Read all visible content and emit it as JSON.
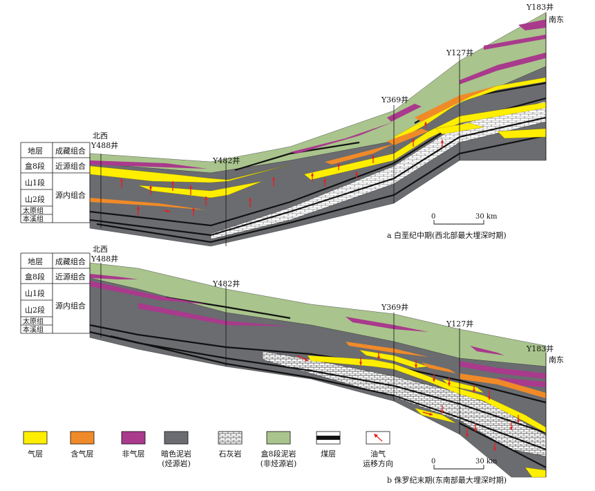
{
  "stratigraphy_table": {
    "header_left": "地层",
    "header_right": "成藏组合",
    "rows": [
      "盒8段",
      "山1段",
      "山2段",
      "太原组",
      "本溪组"
    ],
    "groups": [
      "近源组合",
      "源内组合"
    ]
  },
  "panel_a": {
    "wells": [
      "Y488井",
      "Y482井",
      "Y369井",
      "Y127井",
      "Y183井"
    ],
    "dir_left": "北西",
    "dir_right": "南东",
    "scale_zero": "0",
    "scale_end": "30 km",
    "caption": "a 白垩纪中期(西北部最大埋深时期)"
  },
  "panel_b": {
    "wells": [
      "Y488井",
      "Y482井",
      "Y369井",
      "Y127井",
      "Y183井"
    ],
    "dir_left": "北西",
    "dir_right": "南东",
    "scale_zero": "0",
    "scale_end": "30 km",
    "caption": "b 侏罗纪末期(东南部最大埋深时期)"
  },
  "legend": [
    {
      "label": "气层",
      "pattern": "gas",
      "color": "#ffee00"
    },
    {
      "label": "含气层",
      "pattern": "gas-bearing",
      "color": "#f08a28"
    },
    {
      "label": "非气层",
      "pattern": "non-gas",
      "color": "#a93a8c"
    },
    {
      "label": "暗色泥岩\n(烃源岩)",
      "pattern": "dark-mudstone",
      "color": "#6a6c70"
    },
    {
      "label": "石灰岩",
      "pattern": "limestone",
      "color": "#ffffff"
    },
    {
      "label": "盒8段泥岩\n(非烃源岩)",
      "pattern": "he8-mudstone",
      "color": "#a9c48c"
    },
    {
      "label": "煤层",
      "pattern": "coal",
      "color": "#111111"
    },
    {
      "label": "油气\n运移方向",
      "pattern": "migration-arrow",
      "color": "#e81e1e"
    }
  ],
  "colors": {
    "gas": "#ffee00",
    "gas_bearing": "#f08a28",
    "non_gas": "#a93a8c",
    "dark_mudstone": "#6a6c70",
    "he8_mudstone": "#a9c48c",
    "coal": "#111111",
    "arrow": "#e81e1e"
  }
}
